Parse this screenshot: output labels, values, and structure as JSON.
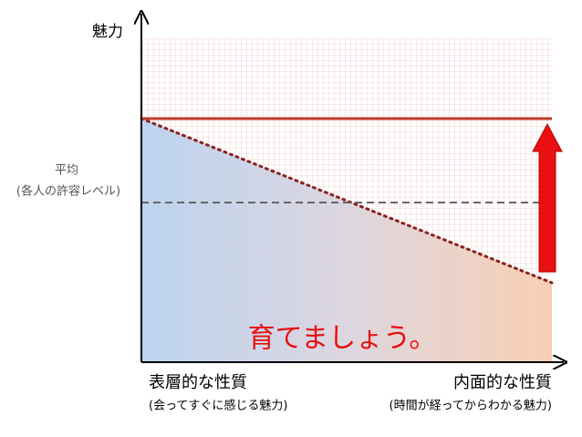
{
  "axes": {
    "y_label": "魅力"
  },
  "average": {
    "label": "平均",
    "note": "(各人の許容レベル)"
  },
  "message": "育てましょう。",
  "x_left": {
    "label": "表層的な性質",
    "note": "(会ってすぐに感じる魅力)"
  },
  "x_right": {
    "label": "内面的な性質",
    "note": "(時間が経ってからわかる魅力)"
  }
}
